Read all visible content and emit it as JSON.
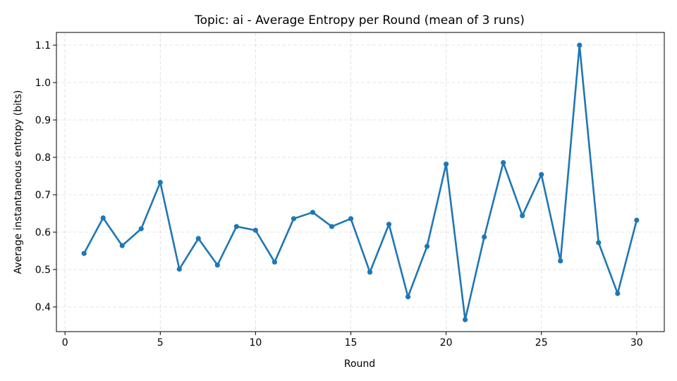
{
  "chart_data": {
    "type": "line",
    "title": "Topic: ai - Average Entropy per Round (mean of 3 runs)",
    "xlabel": "Round",
    "ylabel": "Average instantaneous entropy (bits)",
    "xlim": [
      -0.45,
      31.45
    ],
    "ylim": [
      0.334,
      1.134
    ],
    "xticks": [
      0,
      5,
      10,
      15,
      20,
      25,
      30
    ],
    "yticks": [
      0.4,
      0.5,
      0.6,
      0.7,
      0.8,
      0.9,
      1.0,
      1.1
    ],
    "ytick_labels": [
      "0.4",
      "0.5",
      "0.6",
      "0.7",
      "0.8",
      "0.9",
      "1.0",
      "1.1"
    ],
    "grid": true,
    "series": [
      {
        "color": "#1f77b4",
        "x": [
          1,
          2,
          3,
          4,
          5,
          6,
          7,
          8,
          9,
          10,
          11,
          12,
          13,
          14,
          15,
          16,
          17,
          18,
          19,
          20,
          21,
          22,
          23,
          24,
          25,
          26,
          27,
          28,
          29,
          30
        ],
        "y": [
          0.543,
          0.638,
          0.564,
          0.609,
          0.733,
          0.501,
          0.583,
          0.512,
          0.615,
          0.605,
          0.52,
          0.636,
          0.653,
          0.615,
          0.636,
          0.493,
          0.621,
          0.427,
          0.562,
          0.782,
          0.366,
          0.587,
          0.786,
          0.644,
          0.754,
          0.523,
          1.1,
          0.572,
          0.436,
          0.632
        ]
      }
    ]
  }
}
